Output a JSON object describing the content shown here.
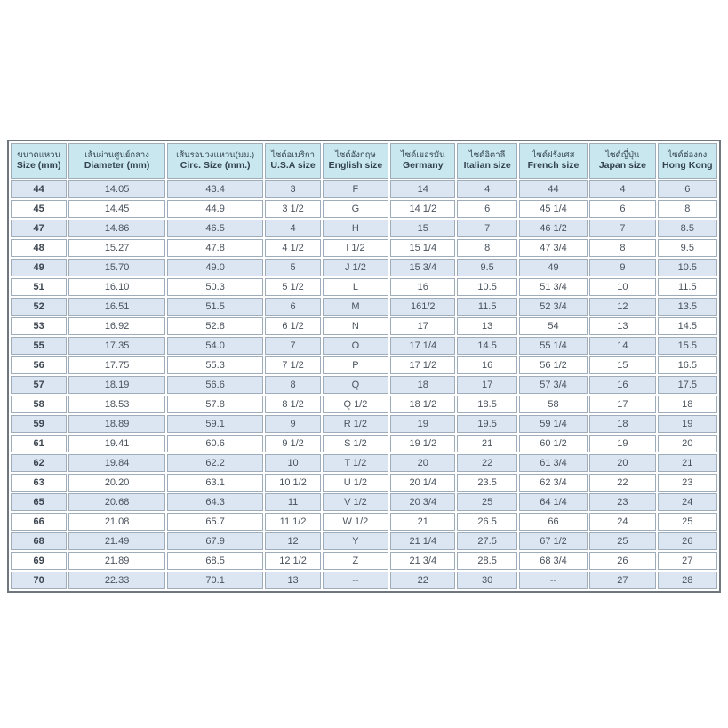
{
  "chart_data": {
    "type": "table",
    "title": "Ring size conversion table (Thai)",
    "columns": [
      {
        "thai": "ขนาดแหวน",
        "english": "Size (mm)"
      },
      {
        "thai": "เส้นผ่านศูนย์กลาง",
        "english": "Diameter (mm)"
      },
      {
        "thai": "เส้นรอบวงแหวน(มม.)",
        "english": "Circ. Size (mm.)"
      },
      {
        "thai": "ไซด์อเมริกา",
        "english": "U.S.A size"
      },
      {
        "thai": "ไซด์อังกฤษ",
        "english": "English size"
      },
      {
        "thai": "ไซด์เยอรมัน",
        "english": "Germany"
      },
      {
        "thai": "ไซด์อิตาลี",
        "english": "Italian size"
      },
      {
        "thai": "ไซด์ฝรั่งเศส",
        "english": "French size"
      },
      {
        "thai": "ไซด์ญี่ปุ่น",
        "english": "Japan size"
      },
      {
        "thai": "ไซด์ฮ่องกง",
        "english": "Hong Kong"
      }
    ],
    "rows": [
      [
        "44",
        "14.05",
        "43.4",
        "3",
        "F",
        "14",
        "4",
        "44",
        "4",
        "6"
      ],
      [
        "45",
        "14.45",
        "44.9",
        "3 1/2",
        "G",
        "14 1/2",
        "6",
        "45 1/4",
        "6",
        "8"
      ],
      [
        "47",
        "14.86",
        "46.5",
        "4",
        "H",
        "15",
        "7",
        "46 1/2",
        "7",
        "8.5"
      ],
      [
        "48",
        "15.27",
        "47.8",
        "4 1/2",
        "I 1/2",
        "15 1/4",
        "8",
        "47 3/4",
        "8",
        "9.5"
      ],
      [
        "49",
        "15.70",
        "49.0",
        "5",
        "J 1/2",
        "15 3/4",
        "9.5",
        "49",
        "9",
        "10.5"
      ],
      [
        "51",
        "16.10",
        "50.3",
        "5 1/2",
        "L",
        "16",
        "10.5",
        "51 3/4",
        "10",
        "11.5"
      ],
      [
        "52",
        "16.51",
        "51.5",
        "6",
        "M",
        "161/2",
        "11.5",
        "52 3/4",
        "12",
        "13.5"
      ],
      [
        "53",
        "16.92",
        "52.8",
        "6 1/2",
        "N",
        "17",
        "13",
        "54",
        "13",
        "14.5"
      ],
      [
        "55",
        "17.35",
        "54.0",
        "7",
        "O",
        "17 1/4",
        "14.5",
        "55 1/4",
        "14",
        "15.5"
      ],
      [
        "56",
        "17.75",
        "55.3",
        "7 1/2",
        "P",
        "17 1/2",
        "16",
        "56 1/2",
        "15",
        "16.5"
      ],
      [
        "57",
        "18.19",
        "56.6",
        "8",
        "Q",
        "18",
        "17",
        "57 3/4",
        "16",
        "17.5"
      ],
      [
        "58",
        "18.53",
        "57.8",
        "8 1/2",
        "Q 1/2",
        "18 1/2",
        "18.5",
        "58",
        "17",
        "18"
      ],
      [
        "59",
        "18.89",
        "59.1",
        "9",
        "R 1/2",
        "19",
        "19.5",
        "59 1/4",
        "18",
        "19"
      ],
      [
        "61",
        "19.41",
        "60.6",
        "9 1/2",
        "S 1/2",
        "19 1/2",
        "21",
        "60 1/2",
        "19",
        "20"
      ],
      [
        "62",
        "19.84",
        "62.2",
        "10",
        "T 1/2",
        "20",
        "22",
        "61 3/4",
        "20",
        "21"
      ],
      [
        "63",
        "20.20",
        "63.1",
        "10 1/2",
        "U 1/2",
        "20 1/4",
        "23.5",
        "62 3/4",
        "22",
        "23"
      ],
      [
        "65",
        "20.68",
        "64.3",
        "11",
        "V 1/2",
        "20 3/4",
        "25",
        "64 1/4",
        "23",
        "24"
      ],
      [
        "66",
        "21.08",
        "65.7",
        "11 1/2",
        "W 1/2",
        "21",
        "26.5",
        "66",
        "24",
        "25"
      ],
      [
        "68",
        "21.49",
        "67.9",
        "12",
        "Y",
        "21 1/4",
        "27.5",
        "67 1/2",
        "25",
        "26"
      ],
      [
        "69",
        "21.89",
        "68.5",
        "12 1/2",
        "Z",
        "21 3/4",
        "28.5",
        "68 3/4",
        "26",
        "27"
      ],
      [
        "70",
        "22.33",
        "70.1",
        "13",
        "--",
        "22",
        "30",
        "--",
        "27",
        "28"
      ]
    ],
    "layout_hints": {
      "header_background": "#c8e7ee",
      "odd_row_background": "#dce6f2",
      "even_row_background": "#ffffff",
      "cell_border_color": "#9fadba",
      "outer_border_color": "#6e7780",
      "text_color": "#49525c"
    }
  }
}
